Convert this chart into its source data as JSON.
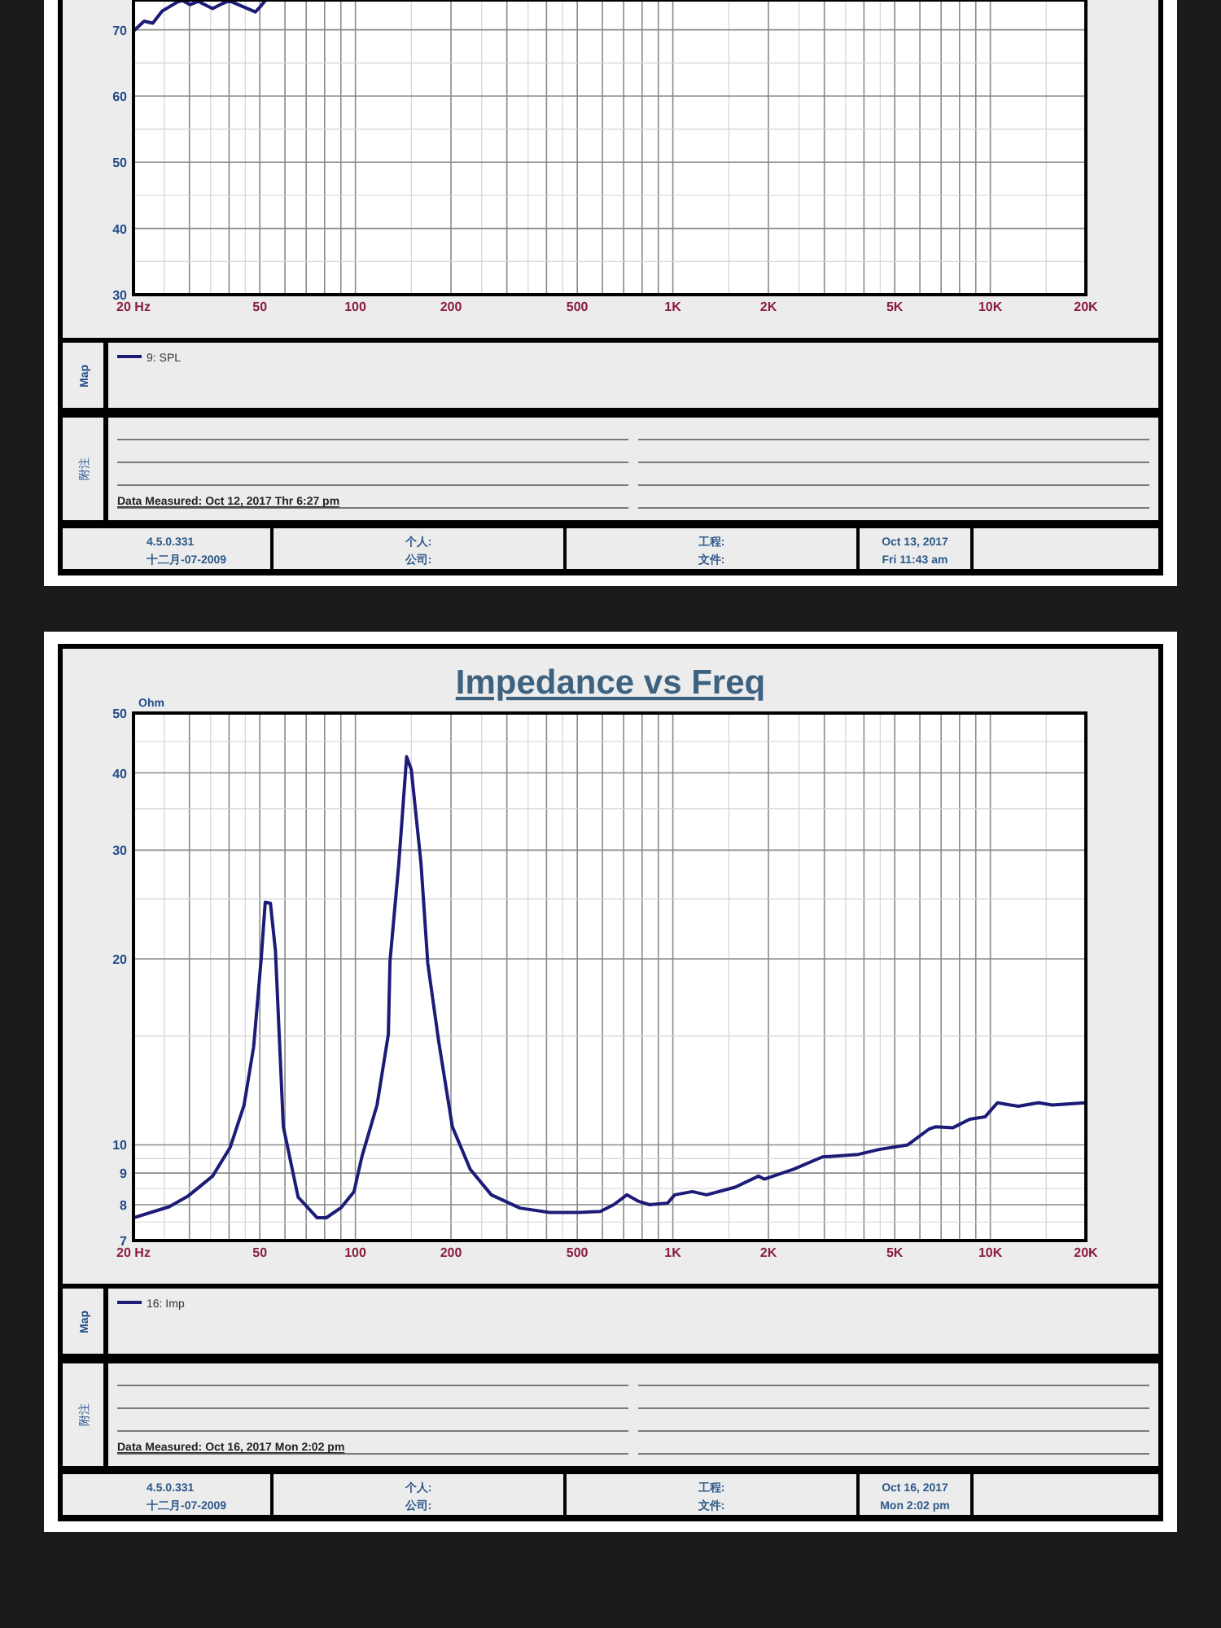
{
  "chart_data": [
    {
      "type": "line",
      "x": [
        20,
        21.6,
        23,
        24.6,
        26,
        27.5,
        28.5,
        30.2,
        32,
        35.5,
        38.3,
        40,
        48.4,
        50,
        52
      ],
      "series": [
        {
          "name": "9: SPL",
          "color": "#1c1c78",
          "values": [
            69.8,
            71.3,
            71,
            72.8,
            73.5,
            74.2,
            74.4,
            73.8,
            74.3,
            73.2,
            74,
            74.4,
            72.7,
            73.4,
            74.4
          ]
        }
      ],
      "xlim": [
        20,
        20000
      ],
      "ylim": [
        30,
        74.5
      ],
      "xticks": [
        {
          "value": 20,
          "label": "20  Hz"
        },
        50,
        100,
        200,
        500,
        {
          "value": 1000,
          "label": "1K"
        },
        {
          "value": 2000,
          "label": "2K"
        },
        {
          "value": 5000,
          "label": "5K"
        },
        {
          "value": 10000,
          "label": "10K"
        },
        {
          "value": 20000,
          "label": "20K"
        }
      ],
      "yticks": [
        30,
        40,
        50,
        60,
        70
      ],
      "log": "x",
      "grid": true,
      "legend": "bottom",
      "annotations": [
        "Map",
        "附注",
        "Data Measured: Oct 12, 2017  Thr  6:27 pm",
        "4.5.0.331",
        "十二月-07-2009",
        "个人:",
        "公司:",
        "工程:",
        "文件:",
        "Oct 13, 2017",
        "Fri 11:43 am"
      ]
    },
    {
      "type": "line",
      "title": "Impedance vs Freq",
      "ylabel": "Ohm",
      "x": [
        20,
        25.9,
        29.6,
        35.5,
        40.3,
        44.6,
        47.8,
        50.5,
        52,
        54,
        56,
        59.3,
        66,
        75.8,
        81,
        90.3,
        99,
        105,
        117,
        127,
        128.5,
        137,
        145,
        150,
        161,
        169,
        183,
        202,
        230,
        268,
        330,
        409,
        505,
        591,
        651,
        716,
        781,
        844,
        963,
        1013,
        1152,
        1277,
        1571,
        1860,
        1940,
        2401,
        2960,
        3323,
        3841,
        4461,
        5499,
        6402,
        6737,
        7631,
        8610,
        9624,
        10530,
        11580,
        12250,
        14190,
        15670,
        20000
      ],
      "series": [
        {
          "name": "16: Imp",
          "color": "#1c1c78",
          "values": [
            7.62,
            7.94,
            8.25,
            8.9,
            9.9,
            11.6,
            14.4,
            20,
            24.7,
            24.6,
            20.6,
            10.7,
            8.23,
            7.62,
            7.62,
            7.92,
            8.4,
            9.6,
            11.6,
            15.1,
            19.8,
            28.5,
            42.5,
            40.5,
            28.5,
            19.7,
            14.7,
            10.7,
            9.13,
            8.3,
            7.9,
            7.77,
            7.77,
            7.8,
            8.0,
            8.3,
            8.1,
            8.0,
            8.05,
            8.3,
            8.4,
            8.3,
            8.54,
            8.9,
            8.8,
            9.13,
            9.56,
            9.6,
            9.65,
            9.83,
            10.0,
            10.6,
            10.7,
            10.66,
            11.0,
            11.1,
            11.7,
            11.6,
            11.55,
            11.7,
            11.6,
            11.7
          ]
        }
      ],
      "xlim": [
        20,
        20000
      ],
      "ylim": [
        7,
        50
      ],
      "xticks": [
        {
          "value": 20,
          "label": "20  Hz"
        },
        50,
        100,
        200,
        500,
        {
          "value": 1000,
          "label": "1K"
        },
        {
          "value": 2000,
          "label": "2K"
        },
        {
          "value": 5000,
          "label": "5K"
        },
        {
          "value": 10000,
          "label": "10K"
        },
        {
          "value": 20000,
          "label": "20K"
        }
      ],
      "yticks": [
        7,
        8,
        9,
        10,
        20,
        30,
        40,
        50
      ],
      "log": "xy",
      "grid": true,
      "legend": "bottom",
      "annotations": [
        "Map",
        "附注",
        "Data Measured: Oct 16, 2017  Mon  2:02 pm",
        "4.5.0.331",
        "十二月-07-2009",
        "个人:",
        "公司:",
        "工程:",
        "文件:",
        "Oct 16, 2017",
        "Mon  2:02 pm"
      ]
    }
  ]
}
